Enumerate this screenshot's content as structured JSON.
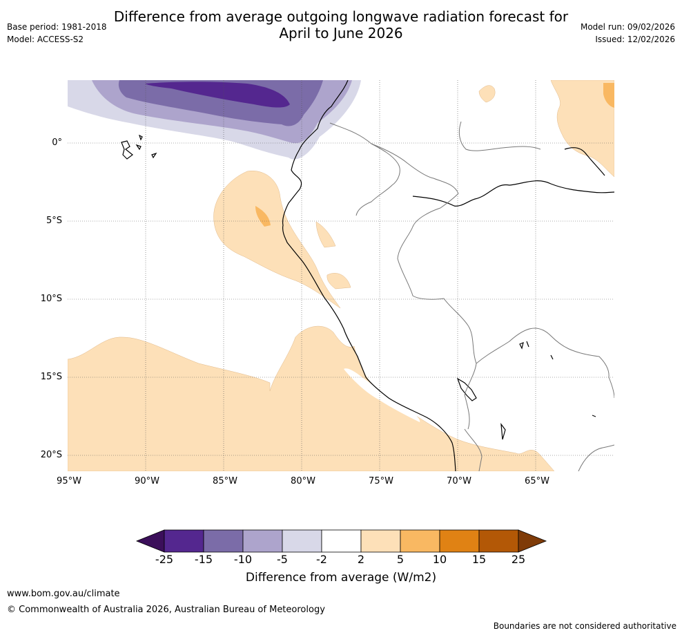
{
  "header": {
    "title_line1": "Difference from average outgoing longwave radiation forecast for",
    "title_line2": "April to June 2026",
    "base_period": "Base period: 1981-2018",
    "model": "Model: ACCESS-S2",
    "model_run": "Model run: 09/02/2026",
    "issued": "Issued: 12/02/2026"
  },
  "map": {
    "latitude_labels": [
      "0°",
      "5°S",
      "10°S",
      "15°S",
      "20°S"
    ],
    "longitude_labels": [
      "95°W",
      "90°W",
      "85°W",
      "80°W",
      "75°W",
      "70°W",
      "65°W"
    ]
  },
  "legend": {
    "title": "Difference from average (W/m2)",
    "ticks": [
      "-25",
      "-15",
      "-10",
      "-5",
      "-2",
      "2",
      "5",
      "10",
      "15",
      "25"
    ],
    "colors": [
      "#3b0f5a",
      "#54278f",
      "#7b6ca8",
      "#ada4cc",
      "#d8d8e8",
      "#ffffff",
      "#fde0b8",
      "#f9b862",
      "#e08214",
      "#b35806",
      "#7f3b08"
    ]
  },
  "footer": {
    "website": "www.bom.gov.au/climate",
    "copyright": "© Commonwealth of Australia 2026, Australian Bureau of Meteorology",
    "disclaimer": "Boundaries are not considered authoritative"
  }
}
